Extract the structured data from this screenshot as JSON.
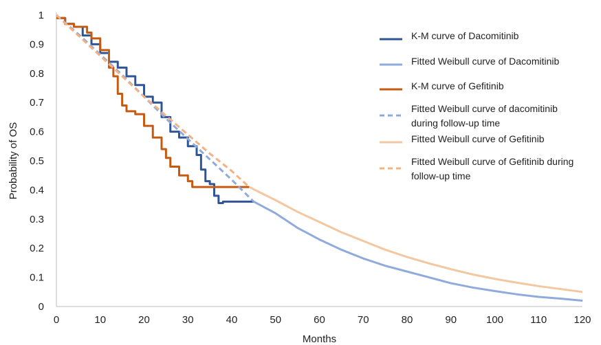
{
  "chart_data": {
    "type": "line",
    "title": "",
    "xlabel": "Months",
    "ylabel": "Probability of OS",
    "xlim": [
      0,
      120
    ],
    "ylim": [
      0,
      1
    ],
    "grid": false,
    "legend_position": "right",
    "x_ticks": [
      "0",
      "10",
      "20",
      "30",
      "40",
      "50",
      "60",
      "70",
      "80",
      "90",
      "100",
      "110",
      "120"
    ],
    "y_ticks": [
      "0",
      "0.1",
      "0.2",
      "0.3",
      "0.4",
      "0.5",
      "0.6",
      "0.7",
      "0.8",
      "0.9",
      "1"
    ],
    "series": [
      {
        "name": "K-M curve of Dacomitinib",
        "color": "#2f5597",
        "style": "step",
        "points": [
          [
            0,
            0.99
          ],
          [
            2,
            0.97
          ],
          [
            4,
            0.96
          ],
          [
            6,
            0.93
          ],
          [
            8,
            0.9
          ],
          [
            10,
            0.87
          ],
          [
            12,
            0.84
          ],
          [
            14,
            0.82
          ],
          [
            16,
            0.79
          ],
          [
            18,
            0.76
          ],
          [
            20,
            0.72
          ],
          [
            22,
            0.7
          ],
          [
            24,
            0.65
          ],
          [
            26,
            0.6
          ],
          [
            28,
            0.58
          ],
          [
            30,
            0.55
          ],
          [
            32,
            0.52
          ],
          [
            33,
            0.47
          ],
          [
            34,
            0.43
          ],
          [
            35,
            0.42
          ],
          [
            36,
            0.38
          ],
          [
            37,
            0.355
          ],
          [
            38,
            0.36
          ],
          [
            40,
            0.36
          ],
          [
            42,
            0.36
          ],
          [
            44,
            0.36
          ],
          [
            45,
            0.36
          ]
        ]
      },
      {
        "name": "Fitted Weibull curve of Dacomitinib",
        "color": "#8faadc",
        "style": "solid",
        "points": [
          [
            45,
            0.36
          ],
          [
            50,
            0.32
          ],
          [
            55,
            0.27
          ],
          [
            60,
            0.23
          ],
          [
            65,
            0.195
          ],
          [
            70,
            0.165
          ],
          [
            75,
            0.14
          ],
          [
            80,
            0.12
          ],
          [
            85,
            0.1
          ],
          [
            90,
            0.08
          ],
          [
            95,
            0.065
          ],
          [
            100,
            0.053
          ],
          [
            105,
            0.042
          ],
          [
            110,
            0.033
          ],
          [
            115,
            0.027
          ],
          [
            120,
            0.02
          ]
        ]
      },
      {
        "name": "K-M curve of Gefitinib",
        "color": "#c55a11",
        "style": "step",
        "points": [
          [
            0,
            0.99
          ],
          [
            2,
            0.97
          ],
          [
            4,
            0.96
          ],
          [
            6,
            0.96
          ],
          [
            7,
            0.94
          ],
          [
            8,
            0.92
          ],
          [
            10,
            0.88
          ],
          [
            12,
            0.82
          ],
          [
            13,
            0.79
          ],
          [
            14,
            0.73
          ],
          [
            15,
            0.69
          ],
          [
            16,
            0.67
          ],
          [
            18,
            0.66
          ],
          [
            20,
            0.62
          ],
          [
            22,
            0.58
          ],
          [
            24,
            0.54
          ],
          [
            25,
            0.51
          ],
          [
            26,
            0.48
          ],
          [
            28,
            0.45
          ],
          [
            30,
            0.43
          ],
          [
            31,
            0.41
          ],
          [
            33,
            0.41
          ],
          [
            35,
            0.41
          ],
          [
            38,
            0.41
          ],
          [
            40,
            0.41
          ],
          [
            42,
            0.41
          ],
          [
            44,
            0.41
          ]
        ]
      },
      {
        "name": "Fitted Weibull curve of dacomitinib during follow-up time",
        "color": "#8faadc",
        "style": "dashed",
        "points": [
          [
            0,
            1
          ],
          [
            5,
            0.935
          ],
          [
            10,
            0.865
          ],
          [
            15,
            0.795
          ],
          [
            20,
            0.72
          ],
          [
            25,
            0.645
          ],
          [
            30,
            0.575
          ],
          [
            35,
            0.505
          ],
          [
            40,
            0.435
          ],
          [
            45,
            0.36
          ]
        ]
      },
      {
        "name": "Fitted Weibull curve of Gefitinib",
        "color": "#f4c7a0",
        "style": "solid",
        "points": [
          [
            44,
            0.41
          ],
          [
            50,
            0.365
          ],
          [
            55,
            0.325
          ],
          [
            60,
            0.29
          ],
          [
            65,
            0.255
          ],
          [
            70,
            0.225
          ],
          [
            75,
            0.195
          ],
          [
            80,
            0.17
          ],
          [
            85,
            0.148
          ],
          [
            90,
            0.128
          ],
          [
            95,
            0.11
          ],
          [
            100,
            0.095
          ],
          [
            105,
            0.082
          ],
          [
            110,
            0.07
          ],
          [
            115,
            0.06
          ],
          [
            120,
            0.05
          ]
        ]
      },
      {
        "name": "Fitted Weibull curve of Gefitinib during follow-up time",
        "color": "#f4b183",
        "style": "dashed",
        "points": [
          [
            0,
            1
          ],
          [
            5,
            0.93
          ],
          [
            10,
            0.86
          ],
          [
            15,
            0.79
          ],
          [
            20,
            0.72
          ],
          [
            25,
            0.655
          ],
          [
            30,
            0.59
          ],
          [
            35,
            0.525
          ],
          [
            40,
            0.465
          ],
          [
            44,
            0.41
          ]
        ]
      }
    ],
    "legend": [
      {
        "lines": [
          "K-M curve of Dacomitinib"
        ],
        "color": "#2f5597",
        "style": "solid"
      },
      {
        "lines": [
          "Fitted Weibull curve of Dacomitinib"
        ],
        "color": "#8faadc",
        "style": "solid"
      },
      {
        "lines": [
          "K-M curve of Gefitinib"
        ],
        "color": "#c55a11",
        "style": "solid"
      },
      {
        "lines": [
          "Fitted Weibull curve of dacomitinib",
          "during follow-up time"
        ],
        "color": "#8faadc",
        "style": "dashed"
      },
      {
        "lines": [
          "Fitted Weibull curve of Gefitinib"
        ],
        "color": "#f4c7a0",
        "style": "solid"
      },
      {
        "lines": [
          "Fitted Weibull curve of Gefitinib during",
          "follow-up time"
        ],
        "color": "#f4b183",
        "style": "dashed"
      }
    ]
  }
}
